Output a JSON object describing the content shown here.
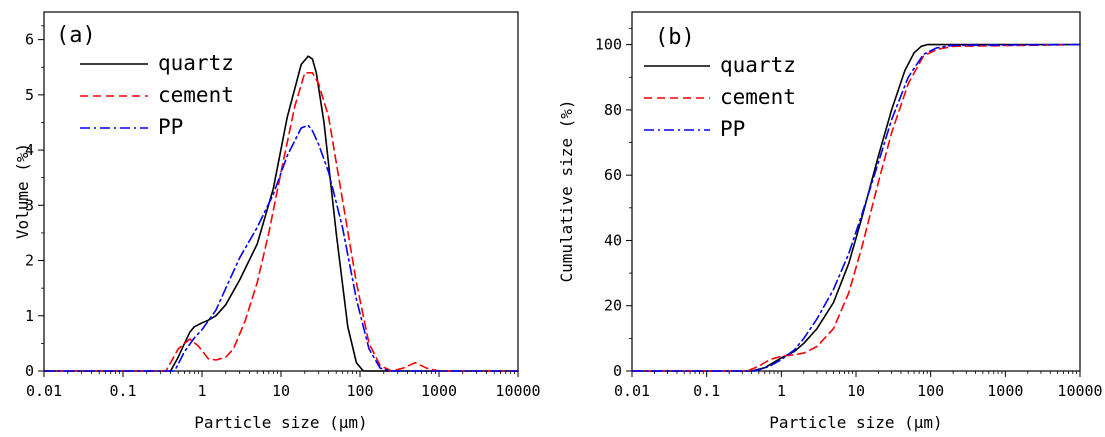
{
  "chart_data": [
    {
      "type": "line",
      "panel_label": "(a)",
      "xlabel": "Particle size (μm)",
      "ylabel": "Volume (%)",
      "x_scale": "log",
      "xlim": [
        0.01,
        10000
      ],
      "ylim": [
        0,
        6.5
      ],
      "x_ticks": [
        0.01,
        0.1,
        1,
        10,
        100,
        1000,
        10000
      ],
      "x_tick_labels": [
        "0.01",
        "0.1",
        "1",
        "10",
        "100",
        "1000",
        "10000"
      ],
      "y_ticks": [
        0,
        1,
        2,
        3,
        4,
        5,
        6
      ],
      "y_tick_labels": [
        "0",
        "1",
        "2",
        "3",
        "4",
        "5",
        "6"
      ],
      "grid": false,
      "legend_position": "top-left",
      "series": [
        {
          "name": "quartz",
          "color": "#000000",
          "dash": "solid",
          "x": [
            0.01,
            0.4,
            0.5,
            0.6,
            0.7,
            0.8,
            1.0,
            1.2,
            1.5,
            2,
            3,
            5,
            8,
            12,
            18,
            22,
            25,
            28,
            35,
            50,
            70,
            90,
            110,
            10000
          ],
          "y": [
            0,
            0,
            0.25,
            0.5,
            0.7,
            0.8,
            0.87,
            0.92,
            1.0,
            1.2,
            1.65,
            2.3,
            3.3,
            4.6,
            5.55,
            5.7,
            5.65,
            5.4,
            4.5,
            2.5,
            0.8,
            0.15,
            0,
            0
          ]
        },
        {
          "name": "cement",
          "color": "#ff0000",
          "dash": "dashed",
          "x": [
            0.01,
            0.35,
            0.5,
            0.7,
            0.9,
            1.2,
            1.5,
            2,
            2.5,
            3.5,
            5,
            7,
            10,
            15,
            20,
            25,
            30,
            40,
            60,
            90,
            130,
            180,
            250,
            350,
            500,
            700,
            1000,
            10000
          ],
          "y": [
            0,
            0,
            0.4,
            0.58,
            0.45,
            0.22,
            0.2,
            0.25,
            0.4,
            0.9,
            1.6,
            2.5,
            3.6,
            4.8,
            5.4,
            5.4,
            5.2,
            4.6,
            3.1,
            1.6,
            0.5,
            0.1,
            0,
            0.05,
            0.15,
            0.05,
            0,
            0
          ]
        },
        {
          "name": "PP",
          "color": "#0000ff",
          "dash": "dashdot",
          "x": [
            0.01,
            0.45,
            0.6,
            0.8,
            1.0,
            1.5,
            2,
            3,
            5,
            8,
            12,
            18,
            22,
            25,
            30,
            40,
            60,
            90,
            130,
            180,
            250,
            10000
          ],
          "y": [
            0,
            0,
            0.35,
            0.6,
            0.75,
            1.1,
            1.5,
            2.05,
            2.6,
            3.2,
            3.9,
            4.4,
            4.45,
            4.35,
            4.1,
            3.6,
            2.6,
            1.3,
            0.4,
            0.05,
            0,
            0
          ]
        }
      ]
    },
    {
      "type": "line",
      "panel_label": "(b)",
      "xlabel": "Particle size (μm)",
      "ylabel": "Cumulative size (%)",
      "x_scale": "log",
      "xlim": [
        0.01,
        10000
      ],
      "ylim": [
        0,
        110
      ],
      "x_ticks": [
        0.01,
        0.1,
        1,
        10,
        100,
        1000,
        10000
      ],
      "x_tick_labels": [
        "0.01",
        "0.1",
        "1",
        "10",
        "100",
        "1000",
        "10000"
      ],
      "y_ticks": [
        0,
        20,
        40,
        60,
        80,
        100
      ],
      "y_tick_labels": [
        "0",
        "20",
        "40",
        "60",
        "80",
        "100"
      ],
      "grid": false,
      "legend_position": "top-left",
      "series": [
        {
          "name": "quartz",
          "color": "#000000",
          "dash": "solid",
          "x": [
            0.01,
            0.4,
            0.6,
            1,
            1.5,
            2,
            3,
            5,
            8,
            12,
            20,
            30,
            45,
            60,
            75,
            90,
            10000
          ],
          "y": [
            0,
            0,
            1,
            4,
            6,
            8.5,
            13,
            21,
            33,
            47,
            66,
            80,
            92,
            97.5,
            99.5,
            100,
            100
          ]
        },
        {
          "name": "cement",
          "color": "#ff0000",
          "dash": "dashed",
          "x": [
            0.01,
            0.35,
            0.5,
            0.7,
            1,
            1.5,
            2,
            3,
            5,
            8,
            12,
            20,
            30,
            50,
            80,
            120,
            200,
            10000
          ],
          "y": [
            0,
            0,
            1.5,
            3.5,
            4.5,
            5,
            5.5,
            7.5,
            13,
            24,
            38,
            58,
            73,
            88,
            96.5,
            98.5,
            99.5,
            100
          ]
        },
        {
          "name": "PP",
          "color": "#0000ff",
          "dash": "dashdot",
          "x": [
            0.01,
            0.45,
            0.7,
            1,
            1.5,
            2,
            3,
            5,
            8,
            12,
            20,
            30,
            50,
            80,
            120,
            200,
            10000
          ],
          "y": [
            0,
            0,
            1.5,
            3.5,
            6.5,
            10,
            16,
            25,
            36,
            48,
            64,
            77,
            90,
            97,
            99,
            99.8,
            100
          ]
        }
      ]
    }
  ]
}
